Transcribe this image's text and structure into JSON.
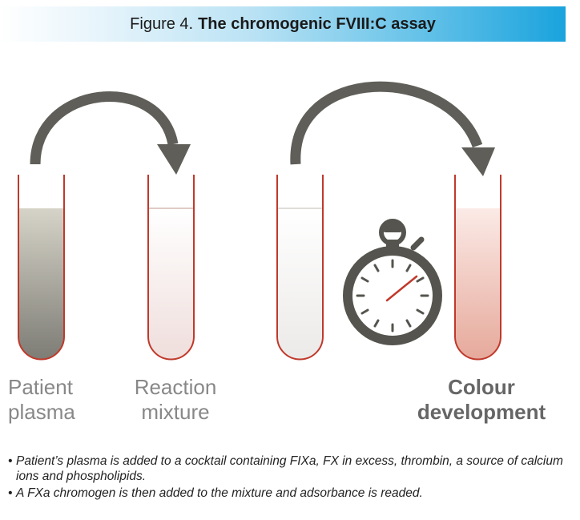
{
  "header": {
    "prefix": "Figure 4.",
    "title": "The chromogenic FVIII:C assay"
  },
  "tubes": [
    {
      "label_line1": "Patient",
      "label_line2": "plasma",
      "fill": "#8b8a82"
    },
    {
      "label_line1": "Reaction",
      "label_line2": "mixture",
      "fill": "#f3e6e4"
    },
    {
      "label_line1": "",
      "label_line2": "",
      "fill": "#f2f0ee"
    },
    {
      "label_line1": "Colour",
      "label_line2": "development",
      "fill": "#e9b4a8"
    }
  ],
  "notes": [
    {
      "bullet": "•",
      "text": "Patient’s plasma is added to a cocktail containing FIXa, FX in excess, thrombin, a source of calcium ions and phospholipids."
    },
    {
      "bullet": "•",
      "text": "A FXa chromogen is then added to the mixture and adsorbance is readed."
    }
  ],
  "colors": {
    "arrow": "#5f5e58",
    "tube_outline": "#c0392b",
    "stopwatch": "#55544e",
    "stopwatch_hand": "#c0392b"
  },
  "icons": [
    "curved-arrow-icon",
    "test-tube-icon",
    "stopwatch-icon"
  ]
}
